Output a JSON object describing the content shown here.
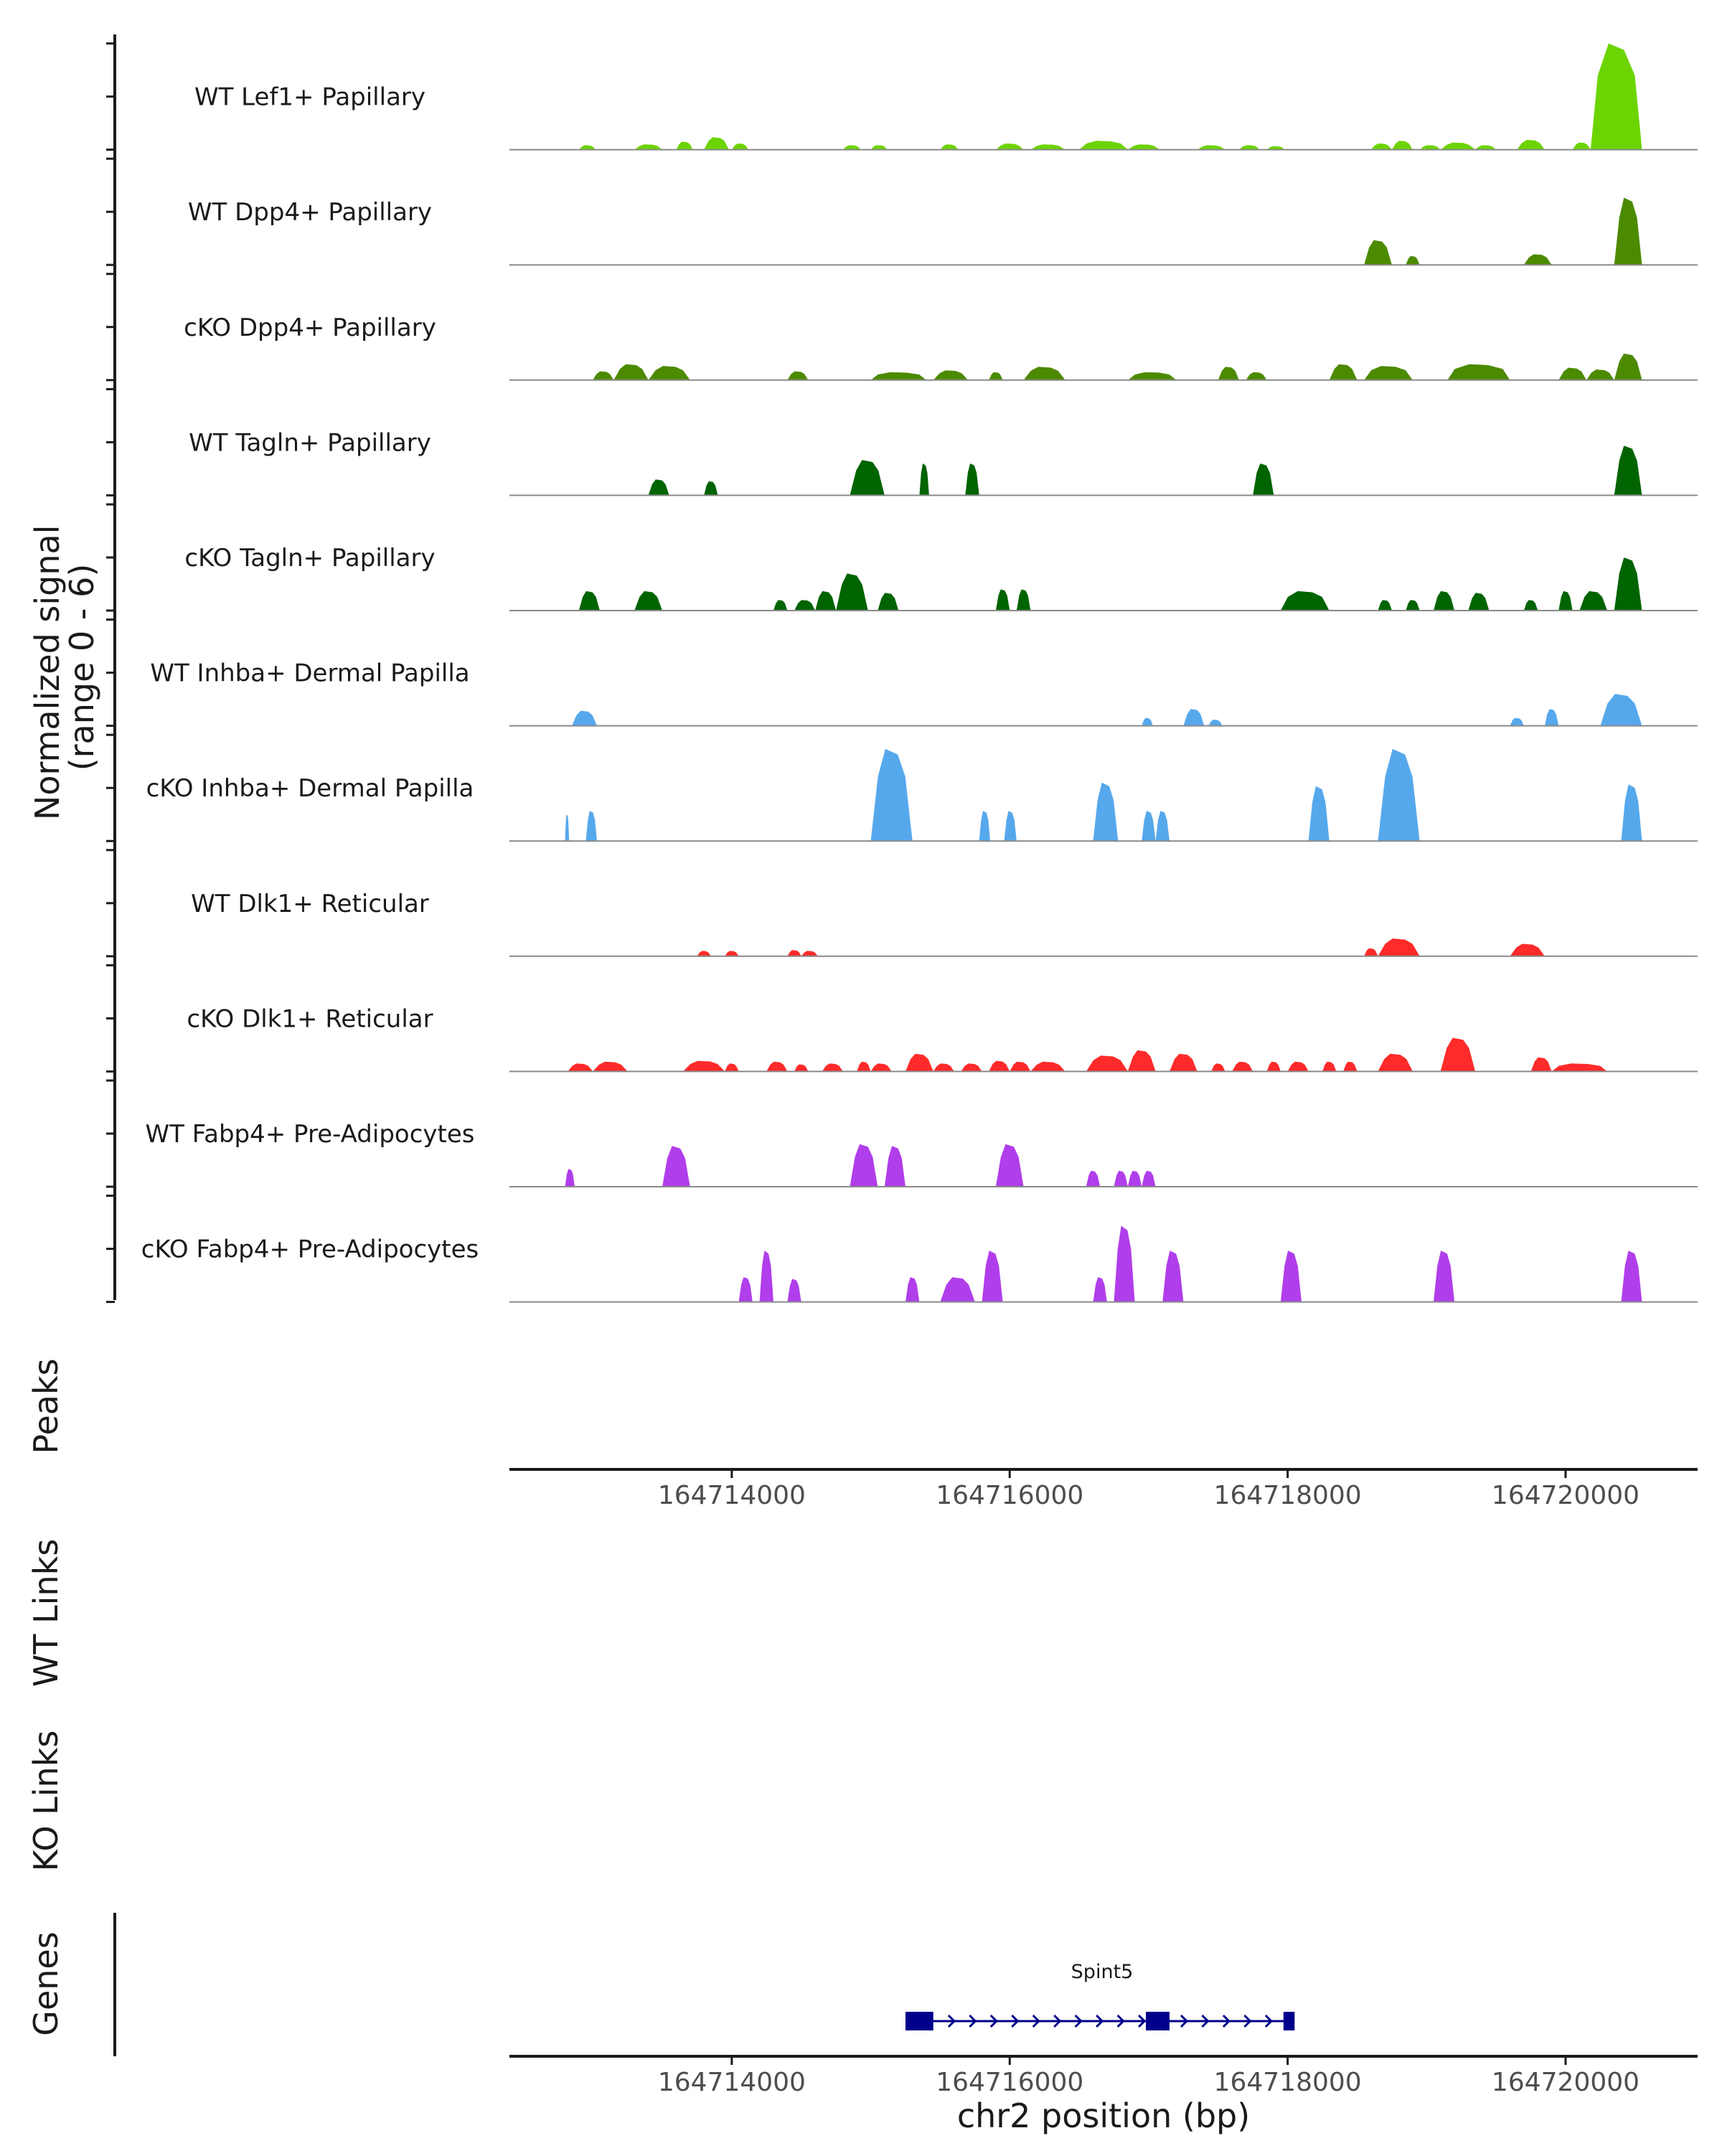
{
  "chart_data": {
    "type": "area",
    "title": "",
    "chromosome": "chr2",
    "xlim": [
      164712400,
      164720950
    ],
    "ylim": [
      0,
      6
    ],
    "ylabel_line1": "Normalized signal",
    "ylabel_line2": "(range 0 - 6)",
    "xlabel": "chr2 position (bp)",
    "xticks": [
      164714000,
      164716000,
      164718000,
      164720000
    ],
    "panel_labels": {
      "peaks": "Peaks",
      "wt_links": "WT Links",
      "ko_links": "KO Links",
      "genes": "Genes"
    },
    "tracks": [
      {
        "name": "WT Lef1+ Papillary",
        "color": "#6CD400",
        "peaks": [
          [
            164712900,
            164713020,
            0.25
          ],
          [
            164713300,
            164713500,
            0.3
          ],
          [
            164713600,
            164713720,
            0.45
          ],
          [
            164713800,
            164713980,
            0.7
          ],
          [
            164714000,
            164714120,
            0.35
          ],
          [
            164714800,
            164714930,
            0.25
          ],
          [
            164715000,
            164715120,
            0.25
          ],
          [
            164715500,
            164715630,
            0.3
          ],
          [
            164715900,
            164716100,
            0.35
          ],
          [
            164716150,
            164716400,
            0.3
          ],
          [
            164716500,
            164716850,
            0.5
          ],
          [
            164716850,
            164717080,
            0.3
          ],
          [
            164717350,
            164717550,
            0.25
          ],
          [
            164717650,
            164717800,
            0.25
          ],
          [
            164717850,
            164717980,
            0.2
          ],
          [
            164718600,
            164718750,
            0.35
          ],
          [
            164718750,
            164718900,
            0.5
          ],
          [
            164718950,
            164719100,
            0.25
          ],
          [
            164719100,
            164719350,
            0.4
          ],
          [
            164719350,
            164719500,
            0.25
          ],
          [
            164719650,
            164719850,
            0.55
          ],
          [
            164720050,
            164720180,
            0.4
          ],
          [
            164720180,
            164720550,
            6.0
          ]
        ]
      },
      {
        "name": "WT Dpp4+ Papillary",
        "color": "#4C8A00",
        "peaks": [
          [
            164718550,
            164718750,
            1.4
          ],
          [
            164718850,
            164718950,
            0.5
          ],
          [
            164719700,
            164719900,
            0.6
          ],
          [
            164720350,
            164720550,
            3.8
          ]
        ]
      },
      {
        "name": "cKO Dpp4+ Papillary",
        "color": "#4C8A00",
        "peaks": [
          [
            164713000,
            164713150,
            0.5
          ],
          [
            164713150,
            164713400,
            0.9
          ],
          [
            164713400,
            164713700,
            0.8
          ],
          [
            164714400,
            164714550,
            0.5
          ],
          [
            164715000,
            164715400,
            0.45
          ],
          [
            164715450,
            164715700,
            0.55
          ],
          [
            164715850,
            164715950,
            0.45
          ],
          [
            164716100,
            164716400,
            0.75
          ],
          [
            164716850,
            164717200,
            0.45
          ],
          [
            164717500,
            164717650,
            0.75
          ],
          [
            164717700,
            164717850,
            0.45
          ],
          [
            164718300,
            164718500,
            0.9
          ],
          [
            164718550,
            164718900,
            0.8
          ],
          [
            164719150,
            164719600,
            0.9
          ],
          [
            164719950,
            164720150,
            0.7
          ],
          [
            164720150,
            164720350,
            0.6
          ],
          [
            164720350,
            164720550,
            1.5
          ]
        ]
      },
      {
        "name": "WT Tagln+ Papillary",
        "color": "#006400",
        "peaks": [
          [
            164713400,
            164713550,
            0.9
          ],
          [
            164713800,
            164713900,
            0.8
          ],
          [
            164714850,
            164715100,
            2.0
          ],
          [
            164715350,
            164715420,
            1.8
          ],
          [
            164715680,
            164715780,
            1.8
          ],
          [
            164717750,
            164717900,
            1.8
          ],
          [
            164720350,
            164720550,
            2.8
          ]
        ]
      },
      {
        "name": "cKO Tagln+ Papillary",
        "color": "#006400",
        "peaks": [
          [
            164712900,
            164713050,
            1.1
          ],
          [
            164713300,
            164713500,
            1.1
          ],
          [
            164714300,
            164714400,
            0.6
          ],
          [
            164714450,
            164714600,
            0.6
          ],
          [
            164714600,
            164714750,
            1.1
          ],
          [
            164714750,
            164714980,
            2.1
          ],
          [
            164715050,
            164715200,
            1.0
          ],
          [
            164715900,
            164716000,
            1.2
          ],
          [
            164716050,
            164716150,
            1.2
          ],
          [
            164717950,
            164718300,
            1.1
          ],
          [
            164718650,
            164718750,
            0.6
          ],
          [
            164718850,
            164718950,
            0.6
          ],
          [
            164719050,
            164719200,
            1.1
          ],
          [
            164719300,
            164719450,
            1.0
          ],
          [
            164719700,
            164719800,
            0.6
          ],
          [
            164719950,
            164720050,
            1.1
          ],
          [
            164720100,
            164720300,
            1.1
          ],
          [
            164720350,
            164720550,
            3.0
          ]
        ]
      },
      {
        "name": "WT Inhba+ Dermal Papilla",
        "color": "#56A8EC",
        "peaks": [
          [
            164712850,
            164713030,
            0.85
          ],
          [
            164716950,
            164717030,
            0.45
          ],
          [
            164717250,
            164717400,
            0.95
          ],
          [
            164717430,
            164717530,
            0.35
          ],
          [
            164719600,
            164719700,
            0.45
          ],
          [
            164719850,
            164719950,
            0.95
          ],
          [
            164720250,
            164720550,
            1.8
          ]
        ]
      },
      {
        "name": "cKO Inhba+ Dermal Papilla",
        "color": "#56A8EC",
        "peaks": [
          [
            164712800,
            164712830,
            1.5
          ],
          [
            164712950,
            164713030,
            1.7
          ],
          [
            164715000,
            164715300,
            5.2
          ],
          [
            164715780,
            164715860,
            1.7
          ],
          [
            164715960,
            164716050,
            1.7
          ],
          [
            164716600,
            164716780,
            3.3
          ],
          [
            164716950,
            164717050,
            1.7
          ],
          [
            164717050,
            164717150,
            1.7
          ],
          [
            164718150,
            164718300,
            3.1
          ],
          [
            164718650,
            164718950,
            5.2
          ],
          [
            164720400,
            164720550,
            3.2
          ]
        ]
      },
      {
        "name": "WT Dlk1+ Reticular",
        "color": "#FF2A2A",
        "peaks": [
          [
            164713750,
            164713850,
            0.3
          ],
          [
            164713950,
            164714050,
            0.3
          ],
          [
            164714400,
            164714500,
            0.35
          ],
          [
            164714500,
            164714620,
            0.3
          ],
          [
            164718550,
            164718650,
            0.45
          ],
          [
            164718650,
            164718950,
            1.0
          ],
          [
            164719600,
            164719850,
            0.7
          ]
        ]
      },
      {
        "name": "cKO Dlk1+ Reticular",
        "color": "#FF2A2A",
        "peaks": [
          [
            164712820,
            164713000,
            0.45
          ],
          [
            164713000,
            164713250,
            0.55
          ],
          [
            164713650,
            164713950,
            0.6
          ],
          [
            164713950,
            164714050,
            0.45
          ],
          [
            164714250,
            164714400,
            0.55
          ],
          [
            164714450,
            164714550,
            0.4
          ],
          [
            164714650,
            164714800,
            0.45
          ],
          [
            164714900,
            164715000,
            0.55
          ],
          [
            164715000,
            164715150,
            0.45
          ],
          [
            164715250,
            164715450,
            1.0
          ],
          [
            164715450,
            164715600,
            0.45
          ],
          [
            164715650,
            164715800,
            0.45
          ],
          [
            164715850,
            164716000,
            0.6
          ],
          [
            164716000,
            164716150,
            0.55
          ],
          [
            164716150,
            164716400,
            0.55
          ],
          [
            164716550,
            164716850,
            0.9
          ],
          [
            164716850,
            164717050,
            1.2
          ],
          [
            164717150,
            164717350,
            1.0
          ],
          [
            164717450,
            164717550,
            0.45
          ],
          [
            164717600,
            164717750,
            0.55
          ],
          [
            164717850,
            164717950,
            0.55
          ],
          [
            164718000,
            164718150,
            0.55
          ],
          [
            164718250,
            164718350,
            0.55
          ],
          [
            164718400,
            164718500,
            0.55
          ],
          [
            164718650,
            164718900,
            1.0
          ],
          [
            164719100,
            164719350,
            1.9
          ],
          [
            164719750,
            164719900,
            0.8
          ],
          [
            164719900,
            164720300,
            0.45
          ]
        ]
      },
      {
        "name": "WT Fabp4+ Pre-Adipocytes",
        "color": "#B03EEB",
        "peaks": [
          [
            164712800,
            164712870,
            1.0
          ],
          [
            164713500,
            164713700,
            2.3
          ],
          [
            164714850,
            164715050,
            2.4
          ],
          [
            164715100,
            164715250,
            2.3
          ],
          [
            164715900,
            164716100,
            2.4
          ],
          [
            164716550,
            164716650,
            0.9
          ],
          [
            164716750,
            164716850,
            0.9
          ],
          [
            164716850,
            164716950,
            0.9
          ],
          [
            164716950,
            164717050,
            0.9
          ]
        ]
      },
      {
        "name": "cKO Fabp4+ Pre-Adipocytes",
        "color": "#B03EEB",
        "peaks": [
          [
            164714050,
            164714150,
            1.4
          ],
          [
            164714200,
            164714300,
            2.9
          ],
          [
            164714400,
            164714500,
            1.3
          ],
          [
            164715250,
            164715350,
            1.4
          ],
          [
            164715500,
            164715750,
            1.4
          ],
          [
            164715800,
            164715950,
            2.9
          ],
          [
            164716600,
            164716700,
            1.4
          ],
          [
            164716750,
            164716900,
            4.3
          ],
          [
            164717100,
            164717250,
            2.9
          ],
          [
            164717950,
            164718100,
            2.9
          ],
          [
            164719050,
            164719200,
            2.9
          ],
          [
            164720400,
            164720550,
            2.9
          ]
        ]
      }
    ],
    "gene": {
      "name": "Spint5",
      "start": 164715250,
      "end": 164718050,
      "strand": "+",
      "exons": [
        [
          164715250,
          164715450
        ],
        [
          164716980,
          164717150
        ],
        [
          164717970,
          164718050
        ]
      ]
    }
  }
}
